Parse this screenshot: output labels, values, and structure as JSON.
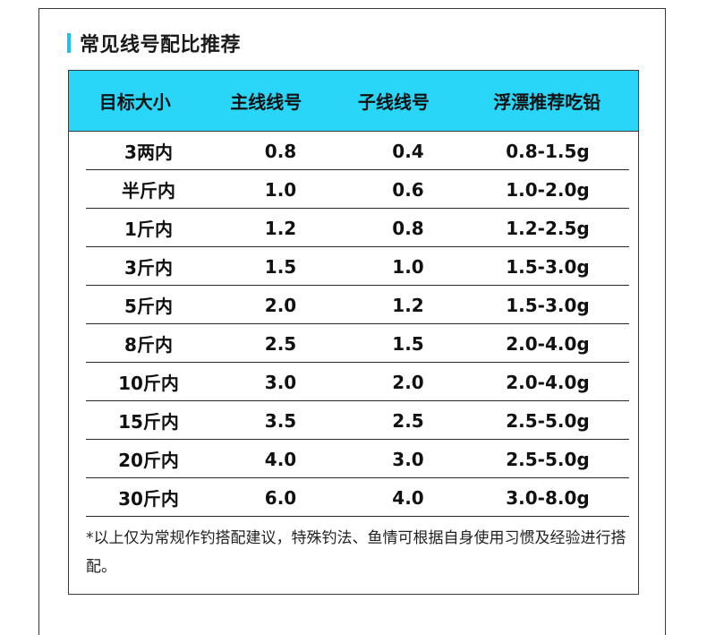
{
  "title": "常见线号配比推荐",
  "colors": {
    "accent": "#19c1ee",
    "header_bg": "#29d6f8"
  },
  "table": {
    "headers": [
      "目标大小",
      "主线线号",
      "子线线号",
      "浮漂推荐吃铅"
    ],
    "rows": [
      [
        "3两内",
        "0.8",
        "0.4",
        "0.8-1.5g"
      ],
      [
        "半斤内",
        "1.0",
        "0.6",
        "1.0-2.0g"
      ],
      [
        "1斤内",
        "1.2",
        "0.8",
        "1.2-2.5g"
      ],
      [
        "3斤内",
        "1.5",
        "1.0",
        "1.5-3.0g"
      ],
      [
        "5斤内",
        "2.0",
        "1.2",
        "1.5-3.0g"
      ],
      [
        "8斤内",
        "2.5",
        "1.5",
        "2.0-4.0g"
      ],
      [
        "10斤内",
        "3.0",
        "2.0",
        "2.0-4.0g"
      ],
      [
        "15斤内",
        "3.5",
        "2.5",
        "2.5-5.0g"
      ],
      [
        "20斤内",
        "4.0",
        "3.0",
        "2.5-5.0g"
      ],
      [
        "30斤内",
        "6.0",
        "4.0",
        "3.0-8.0g"
      ]
    ]
  },
  "note": "*以上仅为常规作钓搭配建议，特殊钓法、鱼情可根据自身使用习惯及经验进行搭配。"
}
